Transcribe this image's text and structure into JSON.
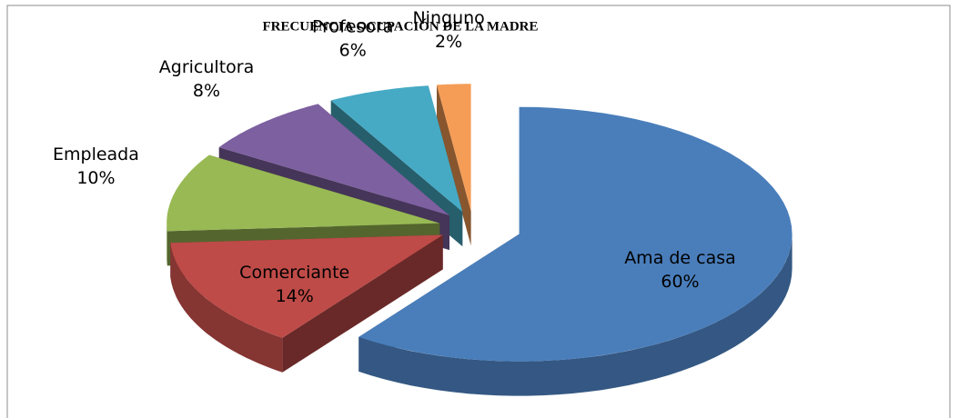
{
  "chart_data": {
    "type": "pie",
    "title": "FRECUENCIA OCUPACIÓN DE LA MADRE",
    "categories": [
      "Ama de casa",
      "Comerciante",
      "Empleada",
      "Agricultora",
      "Profesora",
      "Ninguno"
    ],
    "values": [
      60,
      14,
      10,
      8,
      6,
      2
    ],
    "value_labels": [
      "60%",
      "14%",
      "10%",
      "8%",
      "6%",
      "2%"
    ],
    "colors": [
      "#4a7ebb",
      "#be4b48",
      "#98b954",
      "#7d60a0",
      "#46aac5",
      "#f59d56"
    ],
    "three_d": true,
    "exploded": true
  }
}
